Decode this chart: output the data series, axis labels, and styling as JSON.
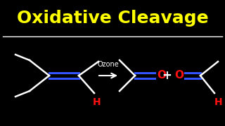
{
  "title": "Oxidative Cleavage",
  "title_color": "#FFFF00",
  "bg_color": "#000000",
  "line_color": "#FFFFFF",
  "double_bond_color": "#3355FF",
  "red_color": "#FF1111",
  "arrow_label": "Ozone",
  "plus_sign": "+",
  "H_label": "H",
  "O_label1": "O",
  "O_label2": "O",
  "title_fontsize": 18,
  "label_fontsize": 10,
  "arrow_label_fontsize": 7,
  "plus_fontsize": 10,
  "lw": 1.8,
  "db_lw": 2.2
}
